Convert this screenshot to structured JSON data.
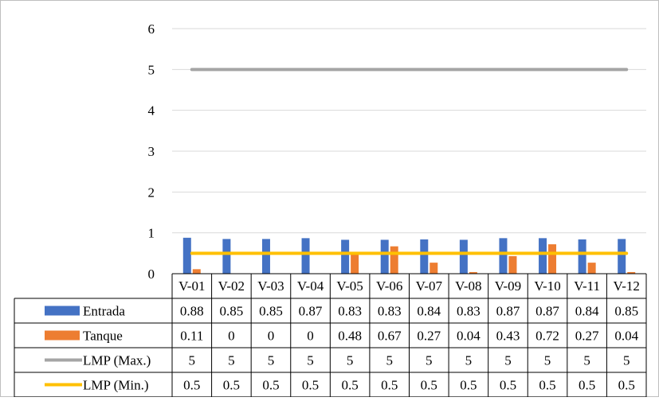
{
  "chart_data": {
    "type": "bar",
    "categories": [
      "V-01",
      "V-02",
      "V-03",
      "V-04",
      "V-05",
      "V-06",
      "V-07",
      "V-08",
      "V-09",
      "V-10",
      "V-11",
      "V-12"
    ],
    "series": [
      {
        "name": "Entrada",
        "kind": "bar",
        "color": "#4472C4",
        "values": [
          0.88,
          0.85,
          0.85,
          0.87,
          0.83,
          0.83,
          0.84,
          0.83,
          0.87,
          0.87,
          0.84,
          0.85
        ],
        "labels": [
          "0.88",
          "0.85",
          "0.85",
          "0.87",
          "0.83",
          "0.83",
          "0.84",
          "0.83",
          "0.87",
          "0.87",
          "0.84",
          "0.85"
        ]
      },
      {
        "name": "Tanque",
        "kind": "bar",
        "color": "#ED7D31",
        "values": [
          0.11,
          0,
          0,
          0,
          0.48,
          0.67,
          0.27,
          0.04,
          0.43,
          0.72,
          0.27,
          0.04
        ],
        "labels": [
          "0.11",
          "0",
          "0",
          "0",
          "0.48",
          "0.67",
          "0.27",
          "0.04",
          "0.43",
          "0.72",
          "0.27",
          "0.04"
        ]
      },
      {
        "name": "LMP (Max.)",
        "kind": "line",
        "color": "#A5A5A5",
        "values": [
          5,
          5,
          5,
          5,
          5,
          5,
          5,
          5,
          5,
          5,
          5,
          5
        ],
        "labels": [
          "5",
          "5",
          "5",
          "5",
          "5",
          "5",
          "5",
          "5",
          "5",
          "5",
          "5",
          "5"
        ]
      },
      {
        "name": "LMP (Min.)",
        "kind": "line",
        "color": "#FFC000",
        "values": [
          0.5,
          0.5,
          0.5,
          0.5,
          0.5,
          0.5,
          0.5,
          0.5,
          0.5,
          0.5,
          0.5,
          0.5
        ],
        "labels": [
          "0.5",
          "0.5",
          "0.5",
          "0.5",
          "0.5",
          "0.5",
          "0.5",
          "0.5",
          "0.5",
          "0.5",
          "0.5",
          "0.5"
        ]
      }
    ],
    "yticks": [
      "0",
      "1",
      "2",
      "3",
      "4",
      "5",
      "6"
    ],
    "ylim": [
      0,
      6
    ],
    "grid": true,
    "legend": "data-table"
  }
}
